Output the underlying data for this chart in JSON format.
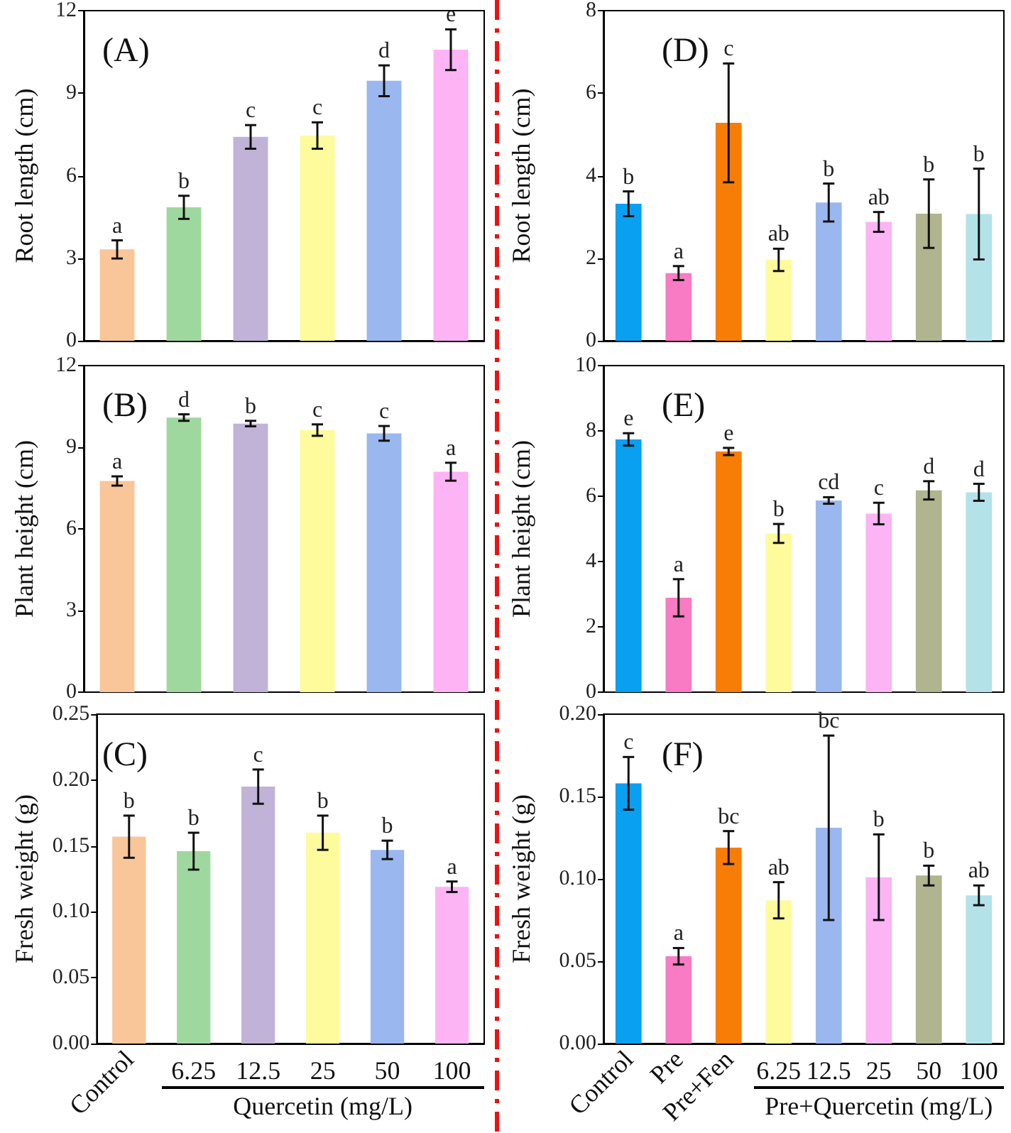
{
  "chart_data": [
    {
      "type": "bar",
      "title": "(A)",
      "ylabel": "Root length (cm)",
      "tick_labels": "y",
      "categories": [
        "Control",
        "6.25",
        "12.5",
        "25",
        "50",
        "100"
      ],
      "values": [
        3.32,
        4.85,
        7.41,
        7.46,
        9.45,
        10.58
      ],
      "errors": [
        0.33,
        0.42,
        0.43,
        0.48,
        0.56,
        0.74
      ],
      "colors": [
        "#f9c69a",
        "#9fd89e",
        "#c1b2d7",
        "#fefb9d",
        "#9ab8ef",
        "#fcb4f5"
      ],
      "ylim": [
        0,
        12
      ],
      "yticks": [
        0,
        3,
        6,
        9,
        12
      ],
      "annotations": [
        {
          "text": "a",
          "x": "Control",
          "y": 3.65
        },
        {
          "text": "b",
          "x": "6.25",
          "y": 5.27
        },
        {
          "text": "c",
          "x": "12.5",
          "y": 7.84
        },
        {
          "text": "c",
          "x": "25",
          "y": 7.94
        },
        {
          "text": "d",
          "x": "50",
          "y": 10.01
        },
        {
          "text": "e",
          "x": "100",
          "y": 11.32
        }
      ]
    },
    {
      "type": "bar",
      "title": "(B)",
      "ylabel": "Plant height (cm)",
      "tick_labels": "y",
      "categories": [
        "Control",
        "6.25",
        "12.5",
        "25",
        "50",
        "100"
      ],
      "values": [
        7.76,
        10.09,
        9.87,
        9.63,
        9.51,
        8.1
      ],
      "errors": [
        0.17,
        0.12,
        0.1,
        0.21,
        0.27,
        0.33
      ],
      "colors": [
        "#f9c69a",
        "#9fd89e",
        "#c1b2d7",
        "#fefb9d",
        "#9ab8ef",
        "#fcb4f5"
      ],
      "ylim": [
        0,
        12
      ],
      "yticks": [
        0,
        3,
        6,
        9,
        12
      ],
      "annotations": [
        {
          "text": "a",
          "x": "Control",
          "y": 7.93
        },
        {
          "text": "d",
          "x": "6.25",
          "y": 10.21
        },
        {
          "text": "b",
          "x": "12.5",
          "y": 9.97
        },
        {
          "text": "c",
          "x": "25",
          "y": 9.84
        },
        {
          "text": "c",
          "x": "50",
          "y": 9.78
        },
        {
          "text": "a",
          "x": "100",
          "y": 8.43
        }
      ]
    },
    {
      "type": "bar",
      "title": "(C)",
      "ylabel": "Fresh weight (g)",
      "xlabel": "Quercetin (mg/L)",
      "categories": [
        "Control",
        "6.25",
        "12.5",
        "25",
        "50",
        "100"
      ],
      "values": [
        0.157,
        0.146,
        0.195,
        0.16,
        0.147,
        0.119
      ],
      "errors": [
        0.016,
        0.014,
        0.013,
        0.013,
        0.007,
        0.004
      ],
      "colors": [
        "#f9c69a",
        "#9fd89e",
        "#c1b2d7",
        "#fefb9d",
        "#9ab8ef",
        "#fcb4f5"
      ],
      "ylim": [
        0,
        0.25
      ],
      "yticks": [
        {
          "value": 0,
          "label": "0.00"
        },
        {
          "value": 0.05,
          "label": "0.05"
        },
        {
          "value": 0.1,
          "label": "0.10"
        },
        {
          "value": 0.15,
          "label": "0.15"
        },
        {
          "value": 0.2,
          "label": "0.20"
        },
        {
          "value": 0.25,
          "label": "0.25"
        }
      ],
      "annotations": [
        {
          "text": "b",
          "x": "Control",
          "y": 0.173
        },
        {
          "text": "b",
          "x": "6.25",
          "y": 0.16
        },
        {
          "text": "c",
          "x": "12.5",
          "y": 0.208
        },
        {
          "text": "b",
          "x": "25",
          "y": 0.173
        },
        {
          "text": "b",
          "x": "50",
          "y": 0.154
        },
        {
          "text": "a",
          "x": "100",
          "y": 0.123
        }
      ]
    },
    {
      "type": "bar",
      "title": "(D)",
      "ylabel": "Root length (cm)",
      "tick_labels": "y",
      "categories": [
        "Control",
        "Pre",
        "Pre+Fen",
        "6.25",
        "12.5",
        "25",
        "50",
        "100"
      ],
      "values": [
        3.32,
        1.64,
        5.28,
        1.96,
        3.35,
        2.88,
        3.08,
        3.07
      ],
      "errors": [
        0.3,
        0.17,
        1.44,
        0.27,
        0.46,
        0.24,
        0.83,
        1.1
      ],
      "colors": [
        "#0aa0f2",
        "#f87bc3",
        "#f87d06",
        "#fefb9d",
        "#9ab8ef",
        "#fcb4f5",
        "#b0b48f",
        "#b3e3e8"
      ],
      "ylim": [
        0,
        8
      ],
      "yticks": [
        0,
        2,
        4,
        6,
        8
      ],
      "annotations": [
        {
          "text": "b",
          "x": "Control",
          "y": 3.62
        },
        {
          "text": "a",
          "x": "Pre",
          "y": 1.81
        },
        {
          "text": "c",
          "x": "Pre+Fen",
          "y": 6.72
        },
        {
          "text": "ab",
          "x": "6.25",
          "y": 2.23
        },
        {
          "text": "b",
          "x": "12.5",
          "y": 3.81
        },
        {
          "text": "ab",
          "x": "25",
          "y": 3.12
        },
        {
          "text": "b",
          "x": "50",
          "y": 3.91
        },
        {
          "text": "b",
          "x": "100",
          "y": 4.17
        }
      ]
    },
    {
      "type": "bar",
      "title": "(E)",
      "ylabel": "Plant height (cm)",
      "tick_labels": "y",
      "categories": [
        "Control",
        "Pre",
        "Pre+Fen",
        "6.25",
        "12.5",
        "25",
        "50",
        "100"
      ],
      "values": [
        7.74,
        2.89,
        7.37,
        4.86,
        5.87,
        5.47,
        6.18,
        6.12
      ],
      "errors": [
        0.19,
        0.57,
        0.11,
        0.29,
        0.1,
        0.33,
        0.28,
        0.26
      ],
      "colors": [
        "#0aa0f2",
        "#f87bc3",
        "#f87d06",
        "#fefb9d",
        "#9ab8ef",
        "#fcb4f5",
        "#b0b48f",
        "#b3e3e8"
      ],
      "ylim": [
        0,
        10
      ],
      "yticks": [
        0,
        2,
        4,
        6,
        8,
        10
      ],
      "annotations": [
        {
          "text": "e",
          "x": "Control",
          "y": 7.93
        },
        {
          "text": "a",
          "x": "Pre",
          "y": 3.46
        },
        {
          "text": "e",
          "x": "Pre+Fen",
          "y": 7.48
        },
        {
          "text": "b",
          "x": "6.25",
          "y": 5.15
        },
        {
          "text": "cd",
          "x": "12.5",
          "y": 5.97
        },
        {
          "text": "c",
          "x": "25",
          "y": 5.8
        },
        {
          "text": "d",
          "x": "50",
          "y": 6.46
        },
        {
          "text": "d",
          "x": "100",
          "y": 6.38
        }
      ]
    },
    {
      "type": "bar",
      "title": "(F)",
      "ylabel": "Fresh weight (g)",
      "xlabel": "Pre+Quercetin (mg/L)",
      "categories": [
        "Control",
        "Pre",
        "Pre+Fen",
        "6.25",
        "12.5",
        "25",
        "50",
        "100"
      ],
      "values": [
        0.158,
        0.053,
        0.119,
        0.087,
        0.131,
        0.101,
        0.102,
        0.09
      ],
      "errors": [
        0.016,
        0.005,
        0.01,
        0.011,
        0.056,
        0.026,
        0.006,
        0.006
      ],
      "colors": [
        "#0aa0f2",
        "#f87bc3",
        "#f87d06",
        "#fefb9d",
        "#9ab8ef",
        "#fcb4f5",
        "#b0b48f",
        "#b3e3e8"
      ],
      "ylim": [
        0,
        0.2
      ],
      "yticks": [
        {
          "value": 0,
          "label": "0.00"
        },
        {
          "value": 0.05,
          "label": "0.05"
        },
        {
          "value": 0.1,
          "label": "0.10"
        },
        {
          "value": 0.15,
          "label": "0.15"
        },
        {
          "value": 0.2,
          "label": "0.20"
        }
      ],
      "annotations": [
        {
          "text": "c",
          "x": "Control",
          "y": 0.174
        },
        {
          "text": "a",
          "x": "Pre",
          "y": 0.058
        },
        {
          "text": "bc",
          "x": "Pre+Fen",
          "y": 0.129
        },
        {
          "text": "ab",
          "x": "6.25",
          "y": 0.098
        },
        {
          "text": "bc",
          "x": "12.5",
          "y": 0.187
        },
        {
          "text": "b",
          "x": "25",
          "y": 0.127
        },
        {
          "text": "b",
          "x": "50",
          "y": 0.108
        },
        {
          "text": "ab",
          "x": "100",
          "y": 0.096
        }
      ]
    }
  ]
}
